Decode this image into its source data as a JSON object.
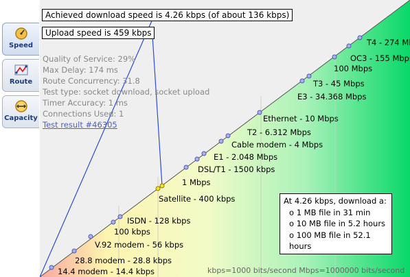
{
  "tabs": [
    {
      "label": "Speed",
      "icon": "speedometer-icon",
      "active": true
    },
    {
      "label": "Route",
      "icon": "route-icon",
      "active": false
    },
    {
      "label": "Capacity",
      "icon": "capacity-icon",
      "active": false
    }
  ],
  "callouts": {
    "download": "Achieved download speed is 4.26 kbps (of about 136 kbps)",
    "upload": "Upload speed is 459 kbps"
  },
  "stats": {
    "qos": "Quality of Service: 29%",
    "max_delay": "Max Delay: 174 ms",
    "route_concurrency": "Route Concurrency: 31.8",
    "test_type": "Test type: socket download, socket upload",
    "timer_accuracy": "Timer Accuracy: 1 ms",
    "connections": "Connections Used: 1",
    "result_link": "Test result #46305"
  },
  "speed_labels": [
    "T4 - 274 Mbps",
    "OC3 - 155 Mbps",
    "100 Mbps",
    "T3 - 45 Mbps",
    "E3 - 34.368 Mbps",
    "Ethernet - 10 Mbps",
    "T2 - 6.312 Mbps",
    "Cable modem - 4 Mbps",
    "E1 - 2.048 Mbps",
    "DSL/T1 - 1500 kbps",
    "1 Mbps",
    "Satellite - 400 kbps",
    "ISDN - 128 kbps",
    "100 kbps",
    "V.92 modem - 56 kbps",
    "28.8 modem - 28.8 kbps",
    "14.4 modem - 14.4 kbps"
  ],
  "download_box": {
    "title": "At 4.26 kbps, download a:",
    "rows": [
      "o 1 MB file in 31 min",
      "o 10 MB file in 5.2 hours",
      "o 100 MB file in 52.1 hours"
    ]
  },
  "legend": "kbps=1000 bits/second  Mbps=1000000 bits/second",
  "colors": {
    "point": "#a8b0ee",
    "measured_point": "#f5e22a",
    "line": "#2c4bd8",
    "tab_text": "#1a3a7a",
    "link": "#5060c0"
  }
}
